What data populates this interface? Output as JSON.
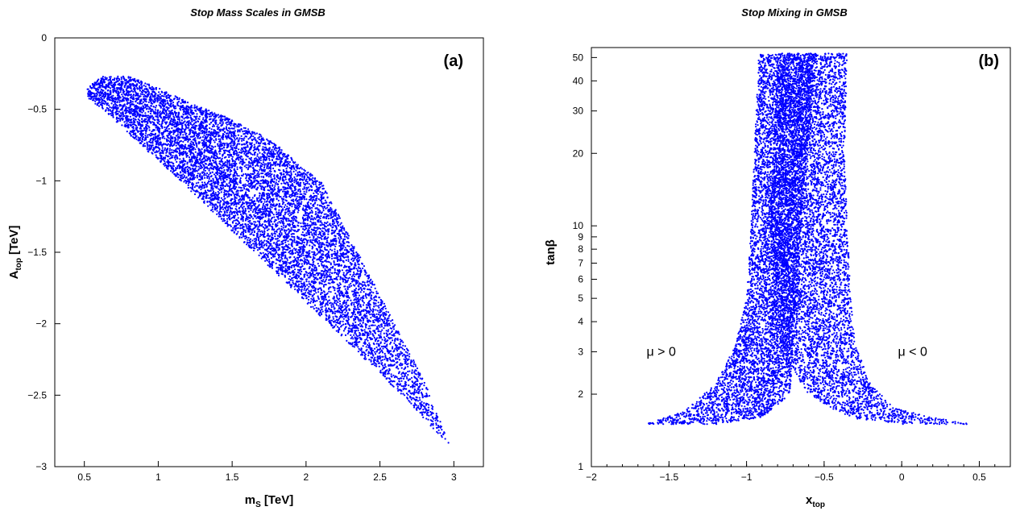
{
  "chart_data": [
    {
      "type": "scatter",
      "title": "Stop Mass Scales in GMSB",
      "panel_tag": "(a)",
      "xlabel": {
        "main": "m",
        "sub": "S",
        "unit": "[TeV]"
      },
      "ylabel": {
        "main": "A",
        "sub": "top",
        "unit": "[TeV]"
      },
      "xlim": [
        0.3,
        3.2
      ],
      "ylim": [
        -3,
        0
      ],
      "xticks": [
        0.5,
        1,
        1.5,
        2,
        2.5,
        3
      ],
      "xtick_labels": [
        "0.5",
        "1",
        "1.5",
        "2",
        "2.5",
        "3"
      ],
      "yticks": [
        0,
        -0.5,
        -1,
        -1.5,
        -2,
        -2.5,
        -3
      ],
      "ytick_labels": [
        "0",
        "−0.5",
        "−1",
        "−1.5",
        "−2",
        "−2.5",
        "−3"
      ],
      "grid": false,
      "color": "#0000ff",
      "region": {
        "description": "dense wedge of points",
        "edge_points": [
          [
            0.52,
            -0.35
          ],
          [
            0.62,
            -0.27
          ],
          [
            0.8,
            -0.27
          ],
          [
            1.0,
            -0.35
          ],
          [
            1.2,
            -0.45
          ],
          [
            1.45,
            -0.55
          ],
          [
            1.65,
            -0.65
          ],
          [
            1.85,
            -0.78
          ],
          [
            1.96,
            -0.9
          ],
          [
            2.1,
            -1.0
          ],
          [
            2.25,
            -1.3
          ],
          [
            2.4,
            -1.6
          ],
          [
            2.6,
            -2.0
          ],
          [
            2.8,
            -2.4
          ],
          [
            2.98,
            -2.87
          ],
          [
            2.7,
            -2.55
          ],
          [
            2.3,
            -2.15
          ],
          [
            2.0,
            -1.85
          ],
          [
            1.7,
            -1.55
          ],
          [
            1.4,
            -1.25
          ],
          [
            1.1,
            -0.95
          ],
          [
            0.85,
            -0.72
          ],
          [
            0.65,
            -0.52
          ],
          [
            0.52,
            -0.42
          ]
        ]
      }
    },
    {
      "type": "scatter",
      "title": "Stop Mixing in GMSB",
      "panel_tag": "(b)",
      "xlabel": {
        "main": "x",
        "sub": "top",
        "unit": ""
      },
      "ylabel": {
        "main": "tanβ",
        "sub": "",
        "unit": ""
      },
      "xlim": [
        -2.0,
        0.7
      ],
      "ylim": [
        1,
        55
      ],
      "yscale": "log",
      "xticks": [
        -2,
        -1.5,
        -1,
        -0.5,
        0,
        0.5
      ],
      "xtick_labels": [
        "−2",
        "−1.5",
        "−1",
        "−0.5",
        "0",
        "0.5"
      ],
      "yticks": [
        1,
        2,
        3,
        4,
        5,
        6,
        7,
        8,
        9,
        10,
        20,
        30,
        40,
        50
      ],
      "ytick_labels": [
        "1",
        "2",
        "3",
        "4",
        "5",
        "6",
        "7",
        "8",
        "9",
        "10",
        "20",
        "30",
        "40",
        "50"
      ],
      "grid": false,
      "color": "#0000ff",
      "annotations": [
        {
          "text": "μ > 0",
          "x": -1.55,
          "y": 3.0
        },
        {
          "text": "μ < 0",
          "x": 0.07,
          "y": 3.0
        }
      ],
      "branches": [
        {
          "name": "μ > 0",
          "left_edge": [
            [
              -1.65,
              1.5
            ],
            [
              -1.4,
              1.7
            ],
            [
              -1.2,
              2.2
            ],
            [
              -1.07,
              3.2
            ],
            [
              -1.0,
              5
            ],
            [
              -0.97,
              10
            ],
            [
              -0.95,
              20
            ],
            [
              -0.92,
              52
            ]
          ],
          "right_edge": [
            [
              -0.55,
              52
            ],
            [
              -0.65,
              10
            ],
            [
              -0.68,
              5
            ],
            [
              -0.7,
              3
            ],
            [
              -0.72,
              2.0
            ],
            [
              -0.9,
              1.6
            ],
            [
              -1.2,
              1.5
            ]
          ]
        },
        {
          "name": "μ < 0",
          "left_edge": [
            [
              -0.8,
              52
            ],
            [
              -0.85,
              10
            ],
            [
              -0.82,
              5
            ],
            [
              -0.78,
              3
            ],
            [
              -0.6,
              2.0
            ],
            [
              -0.35,
              1.6
            ],
            [
              0.0,
              1.5
            ]
          ],
          "right_edge": [
            [
              0.45,
              1.5
            ],
            [
              0.2,
              1.6
            ],
            [
              -0.05,
              1.75
            ],
            [
              -0.2,
              2.2
            ],
            [
              -0.3,
              3.2
            ],
            [
              -0.33,
              5
            ],
            [
              -0.35,
              10
            ],
            [
              -0.37,
              20
            ],
            [
              -0.35,
              52
            ]
          ]
        }
      ]
    }
  ]
}
